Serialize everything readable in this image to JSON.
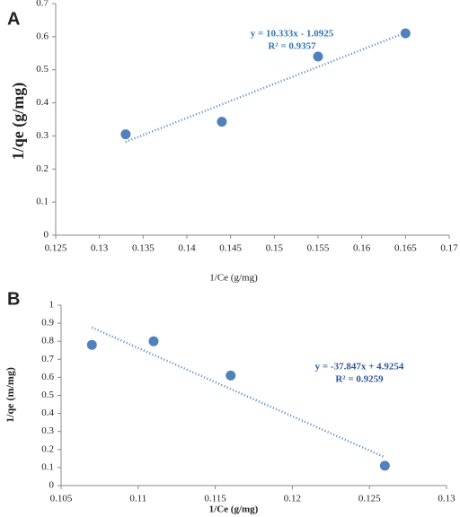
{
  "chart_data": [
    {
      "type": "scatter",
      "panel_label": "A",
      "x": [
        0.133,
        0.144,
        0.155,
        0.165
      ],
      "values": [
        0.305,
        0.343,
        0.54,
        0.61
      ],
      "color": "#4f81bd",
      "trendline": {
        "x": [
          0.133,
          0.165
        ],
        "values": [
          0.282,
          0.612
        ],
        "color": "#4f81bd",
        "equation": "y = 10.333x - 1.0925",
        "r_squared": "R² = 0.9357",
        "text_color": "#2e75b6"
      },
      "x_label": "1/Ce (g/mg)",
      "y_label": "1/qe (g/mg)",
      "xlim": [
        0.125,
        0.17
      ],
      "xticks": [
        0.125,
        0.13,
        0.135,
        0.14,
        0.145,
        0.15,
        0.155,
        0.16,
        0.165,
        0.17
      ],
      "ylim": [
        0,
        0.7
      ],
      "yticks": [
        0,
        0.1,
        0.2,
        0.3,
        0.4,
        0.5,
        0.6,
        0.7
      ]
    },
    {
      "type": "scatter",
      "panel_label": "B",
      "x": [
        0.107,
        0.111,
        0.116,
        0.126
      ],
      "values": [
        0.78,
        0.8,
        0.61,
        0.11
      ],
      "color": "#4f81bd",
      "trendline": {
        "x": [
          0.107,
          0.126
        ],
        "values": [
          0.876,
          0.157
        ],
        "color": "#4f81bd",
        "equation": "y = -37.847x + 4.9254",
        "r_squared": "R² = 0.9259",
        "text_color": "#2f5597"
      },
      "x_label": "1/Ce (g/mg)",
      "y_label": "1/qe (m/mg)",
      "xlim": [
        0.105,
        0.13
      ],
      "xticks": [
        0.105,
        0.11,
        0.115,
        0.12,
        0.125,
        0.13
      ],
      "ylim": [
        0,
        1
      ],
      "yticks": [
        0,
        0.1,
        0.2,
        0.3,
        0.4,
        0.5,
        0.6,
        0.7,
        0.8,
        0.9,
        1
      ]
    }
  ]
}
